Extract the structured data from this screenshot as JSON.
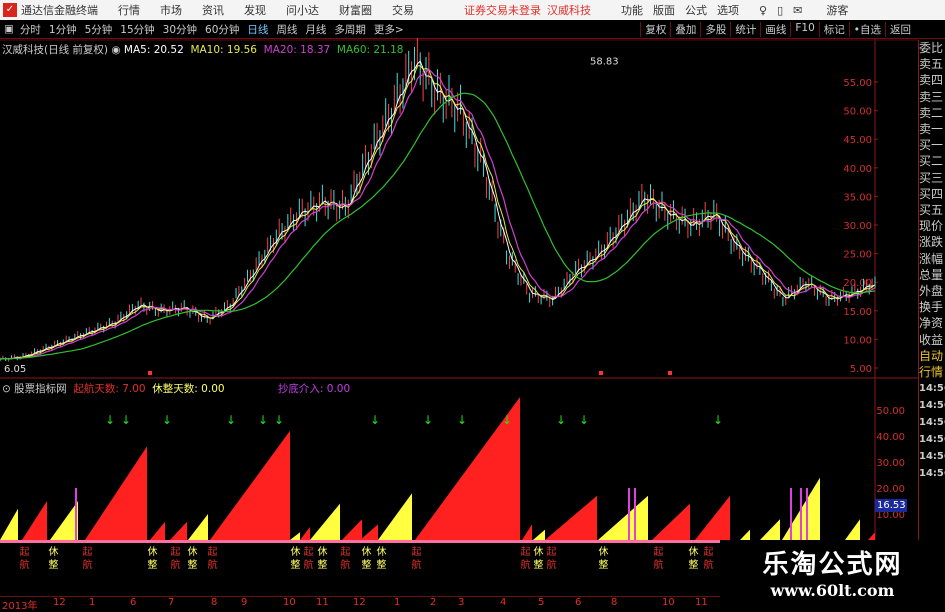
{
  "titlebar": {
    "app": "通达信金融终端",
    "menus": [
      "行情",
      "市场",
      "资讯",
      "发现",
      "问小达",
      "财富圈",
      "交易"
    ],
    "alert": "证券交易未登录",
    "stock": "汉威科技",
    "right": [
      "功能",
      "版面",
      "公式",
      "选项"
    ],
    "user": "游客"
  },
  "toolbar": {
    "periods": [
      "分时",
      "1分钟",
      "5分钟",
      "15分钟",
      "30分钟",
      "60分钟",
      "日线",
      "周线",
      "月线",
      "多周期",
      "更多>"
    ],
    "active": "日线",
    "right": [
      "复权",
      "叠加",
      "多股",
      "统计",
      "画线",
      "F10",
      "标记",
      "•自选",
      "返回"
    ]
  },
  "info": {
    "title": "汉威科技(日线 前复权)",
    "ma5": "MA5: 20.52",
    "ma10": "MA10: 19.56",
    "ma20": "MA20: 18.37",
    "ma60": "MA60: 21.18",
    "high_label": "58.83",
    "low_label": "6.05"
  },
  "indicator": {
    "name": "股票指标网",
    "qihang": "起航天数: 7.00",
    "xiuzheng": "休整天数: 0.00",
    "chaodi": "抄底介入: 0.00",
    "highlight": "16.53"
  },
  "colors": {
    "ma5": "#ffffff",
    "ma10": "#e9e94a",
    "ma20": "#d040d0",
    "ma60": "#30c030",
    "up": "#ff2020",
    "rest": "#ffff40",
    "arrow": "#20e020"
  },
  "right_panel": {
    "items": [
      "委比",
      "卖五",
      "卖四",
      "卖三",
      "卖二",
      "卖一",
      "买一",
      "买二",
      "买三",
      "买四",
      "买五",
      "现价",
      "涨跌",
      "涨幅",
      "总量",
      "外盘",
      "换手",
      "净资",
      "收益"
    ],
    "header": [
      "自动",
      "行情"
    ],
    "times": [
      "14:56",
      "14:56",
      "14:56",
      "14:56",
      "14:56",
      "14:56"
    ]
  },
  "signals": {
    "qihang": "起航",
    "xiuzheng": "休整"
  },
  "dates": [
    "2013年",
    "12",
    "1",
    "6",
    "7",
    "8",
    "9",
    "10",
    "11",
    "12",
    "1",
    "2",
    "3",
    "4",
    "5",
    "6",
    "8",
    "10",
    "11"
  ],
  "watermark": {
    "name": "乐淘公式网",
    "url": "www.60lt.com"
  },
  "chart_data": {
    "type": "line",
    "yaxis_price": [
      "55.00",
      "50.00",
      "45.00",
      "40.00",
      "35.00",
      "30.00",
      "25.00",
      "20.00",
      "15.00",
      "10.00",
      "5.00"
    ],
    "yaxis_indicator": [
      "50.00",
      "40.00",
      "30.00",
      "20.00",
      "10.00"
    ],
    "close_approx": [
      6.5,
      7,
      8.5,
      10,
      11.5,
      13,
      16,
      15,
      15.5,
      13.5,
      16,
      22,
      28,
      32,
      34,
      33,
      42,
      50,
      58.8,
      53,
      50,
      40,
      25,
      18,
      17,
      22,
      25,
      30,
      35,
      32,
      30,
      32,
      26,
      22,
      17,
      20,
      17,
      18,
      20
    ]
  }
}
